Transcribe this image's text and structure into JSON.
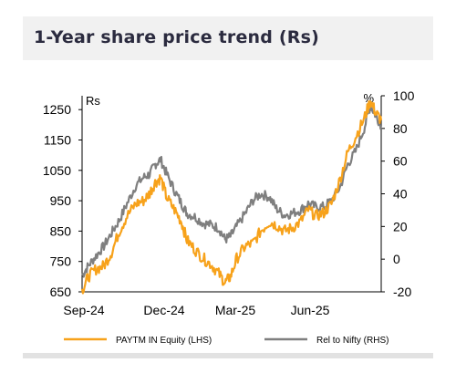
{
  "header": {
    "title": "1-Year share price trend (Rs)"
  },
  "colors": {
    "primary": "#f7a21b",
    "secondary": "#7f7f7f"
  },
  "chart_data": {
    "type": "line",
    "x_ticks": [
      "Sep-24",
      "Dec-24",
      "Mar-25",
      "Jun-25"
    ],
    "left_axis": {
      "unit": "Rs",
      "ticks": [
        650,
        750,
        850,
        950,
        1050,
        1150,
        1250
      ],
      "ylim": [
        650,
        1300
      ]
    },
    "right_axis": {
      "unit": "%",
      "ticks": [
        -20,
        0,
        20,
        40,
        60,
        80,
        100
      ],
      "ylim": [
        -20,
        100
      ]
    },
    "grid": false,
    "legend_position": "bottom",
    "series": [
      {
        "name": "PAYTM IN Equity (LHS)",
        "axis": "left",
        "color": "#f7a21b",
        "points": [
          [
            "2024-09-02",
            655
          ],
          [
            "2024-09-10",
            700
          ],
          [
            "2024-09-20",
            725
          ],
          [
            "2024-09-30",
            735
          ],
          [
            "2024-10-10",
            780
          ],
          [
            "2024-10-20",
            850
          ],
          [
            "2024-10-30",
            900
          ],
          [
            "2024-11-10",
            940
          ],
          [
            "2024-11-20",
            950
          ],
          [
            "2024-11-28",
            975
          ],
          [
            "2024-12-05",
            1010
          ],
          [
            "2024-12-12",
            1025
          ],
          [
            "2024-12-20",
            960
          ],
          [
            "2024-12-30",
            920
          ],
          [
            "2025-01-08",
            880
          ],
          [
            "2025-01-15",
            820
          ],
          [
            "2025-01-25",
            790
          ],
          [
            "2025-02-05",
            760
          ],
          [
            "2025-02-15",
            740
          ],
          [
            "2025-02-25",
            710
          ],
          [
            "2025-03-05",
            680
          ],
          [
            "2025-03-12",
            700
          ],
          [
            "2025-03-20",
            760
          ],
          [
            "2025-03-31",
            800
          ],
          [
            "2025-04-10",
            810
          ],
          [
            "2025-04-20",
            850
          ],
          [
            "2025-05-01",
            880
          ],
          [
            "2025-05-10",
            870
          ],
          [
            "2025-05-20",
            850
          ],
          [
            "2025-05-30",
            860
          ],
          [
            "2025-06-10",
            880
          ],
          [
            "2025-06-20",
            920
          ],
          [
            "2025-06-30",
            900
          ],
          [
            "2025-07-10",
            910
          ],
          [
            "2025-07-20",
            940
          ],
          [
            "2025-07-31",
            1020
          ],
          [
            "2025-08-10",
            1110
          ],
          [
            "2025-08-20",
            1160
          ],
          [
            "2025-08-31",
            1220
          ],
          [
            "2025-09-08",
            1280
          ],
          [
            "2025-09-15",
            1240
          ],
          [
            "2025-09-22",
            1215
          ]
        ]
      },
      {
        "name": "Rel to Nifty (RHS)",
        "axis": "right",
        "color": "#7f7f7f",
        "points": [
          [
            "2024-09-02",
            -10
          ],
          [
            "2024-09-10",
            -4
          ],
          [
            "2024-09-20",
            2
          ],
          [
            "2024-09-30",
            8
          ],
          [
            "2024-10-10",
            16
          ],
          [
            "2024-10-20",
            24
          ],
          [
            "2024-10-30",
            34
          ],
          [
            "2024-11-10",
            45
          ],
          [
            "2024-11-20",
            50
          ],
          [
            "2024-11-28",
            52
          ],
          [
            "2024-12-05",
            58
          ],
          [
            "2024-12-12",
            61
          ],
          [
            "2024-12-20",
            52
          ],
          [
            "2024-12-30",
            42
          ],
          [
            "2025-01-08",
            34
          ],
          [
            "2025-01-15",
            28
          ],
          [
            "2025-01-25",
            26
          ],
          [
            "2025-02-05",
            22
          ],
          [
            "2025-02-15",
            21
          ],
          [
            "2025-02-25",
            19
          ],
          [
            "2025-03-05",
            12
          ],
          [
            "2025-03-12",
            14
          ],
          [
            "2025-03-20",
            20
          ],
          [
            "2025-03-31",
            28
          ],
          [
            "2025-04-10",
            36
          ],
          [
            "2025-04-20",
            40
          ],
          [
            "2025-05-01",
            38
          ],
          [
            "2025-05-10",
            31
          ],
          [
            "2025-05-20",
            27
          ],
          [
            "2025-05-30",
            28
          ],
          [
            "2025-06-10",
            30
          ],
          [
            "2025-06-20",
            34
          ],
          [
            "2025-06-30",
            32
          ],
          [
            "2025-07-10",
            32
          ],
          [
            "2025-07-20",
            36
          ],
          [
            "2025-07-31",
            44
          ],
          [
            "2025-08-10",
            58
          ],
          [
            "2025-08-20",
            66
          ],
          [
            "2025-08-31",
            80
          ],
          [
            "2025-09-08",
            94
          ],
          [
            "2025-09-15",
            88
          ],
          [
            "2025-09-22",
            82
          ]
        ]
      }
    ]
  }
}
